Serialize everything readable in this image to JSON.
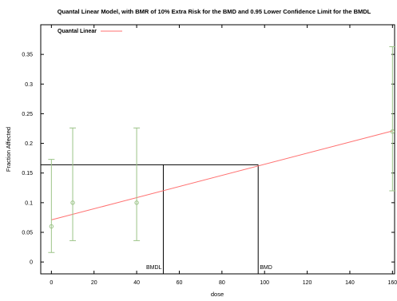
{
  "chart_data": {
    "type": "scatter",
    "title": "Quantal Linear Model, with BMR of 10% Extra Risk for the BMD and 0.95 Lower Confidence Limit for the BMDL",
    "xlabel": "dose",
    "ylabel": "Fraction Affected",
    "xlim": [
      -5,
      161
    ],
    "ylim": [
      -0.02,
      0.4
    ],
    "x_ticks": [
      0,
      20,
      40,
      60,
      80,
      100,
      120,
      140,
      160
    ],
    "x_tick_labels": [
      "0",
      "20",
      "40",
      "60",
      "80",
      "100",
      "120",
      "140",
      "160"
    ],
    "y_ticks": [
      0,
      0.05,
      0.1,
      0.15,
      0.2,
      0.25,
      0.3,
      0.35
    ],
    "y_tick_labels": [
      "0",
      "0.05",
      "0.1",
      "0.15",
      "0.2",
      "0.25",
      "0.3",
      "0.35"
    ],
    "grid": false,
    "legend_position": "top-left",
    "legend": [
      {
        "name": "Quantal Linear",
        "color": "#ff7070"
      }
    ],
    "observed": {
      "dose": [
        0,
        10,
        40,
        160
      ],
      "fraction": [
        0.06,
        0.1,
        0.1,
        0.22
      ],
      "lower": [
        0.016,
        0.036,
        0.036,
        0.12
      ],
      "upper": [
        0.173,
        0.226,
        0.226,
        0.363
      ],
      "color": "#9cc488"
    },
    "model_line": {
      "name": "Quantal Linear",
      "x": [
        0,
        160
      ],
      "y": [
        0.071,
        0.221
      ],
      "color": "#ff7070"
    },
    "bmd_lines": {
      "bmr_level": 0.164,
      "bmdl": 52.5,
      "bmd": 97,
      "bmdl_label": "BMDL",
      "bmd_label": "BMD",
      "color": "#000000"
    }
  }
}
